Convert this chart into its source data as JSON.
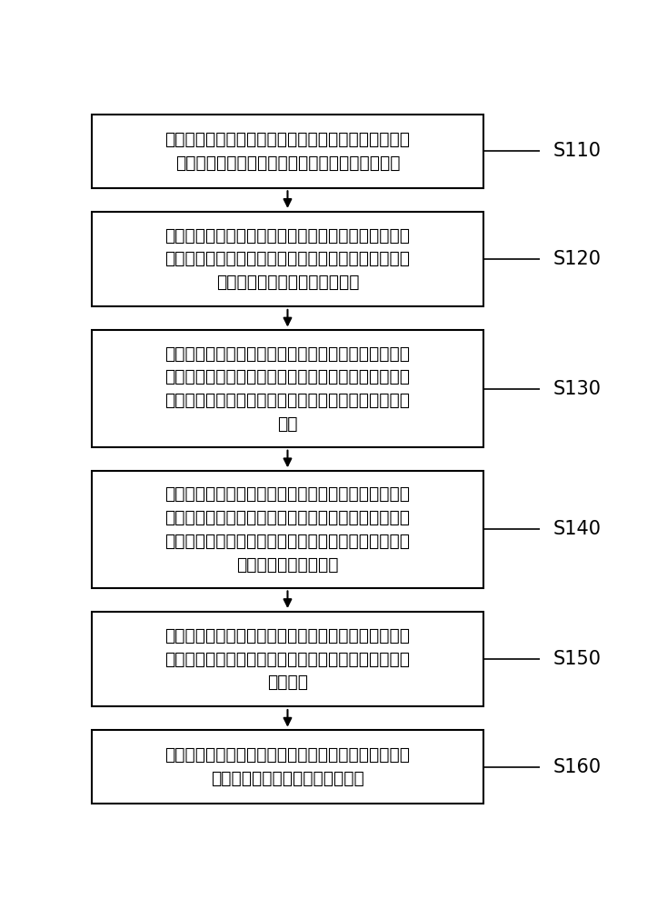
{
  "background_color": "#ffffff",
  "box_border_color": "#000000",
  "box_fill_color": "#ffffff",
  "arrow_color": "#000000",
  "label_color": "#000000",
  "font_size": 13.5,
  "label_font_size": 15,
  "boxes": [
    {
      "id": "S110",
      "label": "S110",
      "text": "提供反应室，反应室内承装有第一混合溶液，第一混合\n溶液包括第一溶剂及溶解于第一溶剂中的第一单体",
      "lines": 2
    },
    {
      "id": "S120",
      "label": "S120",
      "text": "向反应室中通入第二溶剂，以使第二溶剂流经第一混合\n溶液的液面，第二溶剂与第一溶剂不相溶，且第二溶剂\n的密度小于第一混合溶液的密度",
      "lines": 3
    },
    {
      "id": "S130",
      "label": "S130",
      "text": "在第二溶剂流经第一混合溶液的液面的同时，检测反应\n室的不同深度处的初始反射光强，根据不同深度处的初\n始反射光强，计算第一混合溶液和第二溶剂的交界面的\n位置",
      "lines": 4
    },
    {
      "id": "S140",
      "label": "S140",
      "text": "向反应室中通入第二混合溶液，并使第二混合溶液流经\n第一混合溶液的液面，同时检测反应室的不同深度处的\n实时反射光强，第二混合溶液中包含第二溶剂和溶解于\n第二溶剂中的第二单体",
      "lines": 4
    },
    {
      "id": "S150",
      "label": "S150",
      "text": "根据交界面的位置和不同深度处的实时反射光强，计算\n不同相对深度处的实时反射光强，相对深度为相对交界\n面的深度",
      "lines": 3
    },
    {
      "id": "S160",
      "label": "S160",
      "text": "根据不同相对深度处的实时反射光强，建立每个相对深\n度处的反射光强与时间的关系曲线",
      "lines": 2
    }
  ]
}
